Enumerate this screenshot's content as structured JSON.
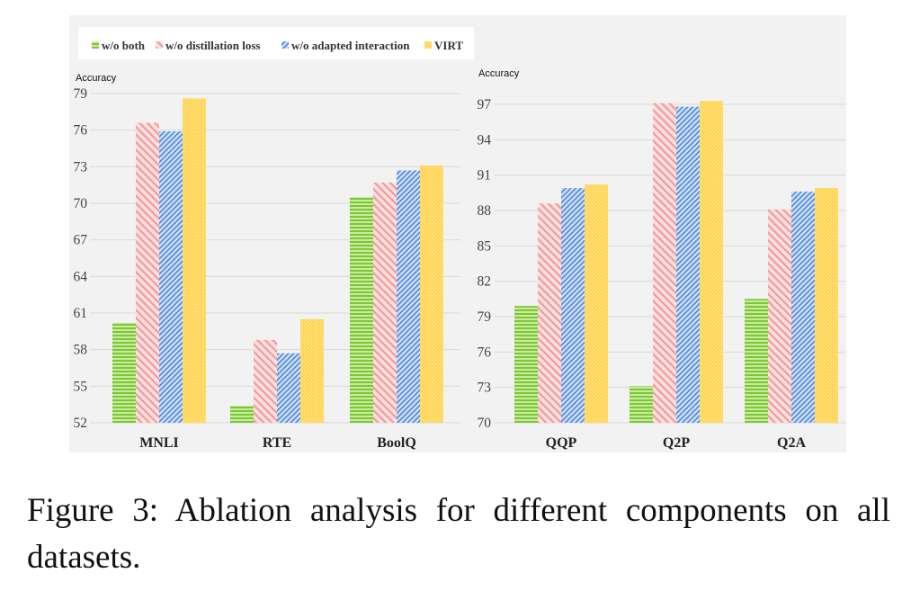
{
  "legend": [
    {
      "name": "w/o both",
      "color": "#8fd14f"
    },
    {
      "name": "w/o distillation loss",
      "color": "#f4a6a6"
    },
    {
      "name": "w/o adapted interaction",
      "color": "#6f9fe0"
    },
    {
      "name": "VIRT",
      "color": "#ffd659"
    }
  ],
  "caption": "Figure 3: Ablation analysis for different components on all datasets.",
  "chart_data": [
    {
      "type": "bar",
      "ylabel": "Accuracy",
      "xlabel": "",
      "ylim": [
        52,
        79
      ],
      "yticks": [
        52,
        55,
        58,
        61,
        64,
        67,
        70,
        73,
        76,
        79
      ],
      "grid": true,
      "categories": [
        "MNLI",
        "RTE",
        "BoolQ"
      ],
      "series": [
        {
          "name": "w/o both",
          "values": [
            60.2,
            53.4,
            70.5
          ]
        },
        {
          "name": "w/o distillation loss",
          "values": [
            76.6,
            58.8,
            71.7
          ]
        },
        {
          "name": "w/o adapted interaction",
          "values": [
            75.9,
            57.7,
            72.7
          ]
        },
        {
          "name": "VIRT",
          "values": [
            78.6,
            60.5,
            73.1
          ]
        }
      ]
    },
    {
      "type": "bar",
      "ylabel": "Accuracy",
      "xlabel": "",
      "ylim": [
        70,
        97
      ],
      "yticks": [
        70,
        73,
        76,
        79,
        82,
        85,
        88,
        91,
        94,
        97
      ],
      "grid": true,
      "categories": [
        "QQP",
        "Q2P",
        "Q2A"
      ],
      "series": [
        {
          "name": "w/o both",
          "values": [
            79.9,
            73.1,
            80.5
          ]
        },
        {
          "name": "w/o distillation loss",
          "values": [
            88.6,
            97.1,
            88.1
          ]
        },
        {
          "name": "w/o adapted interaction",
          "values": [
            89.9,
            96.8,
            89.6
          ]
        },
        {
          "name": "VIRT",
          "values": [
            90.2,
            97.3,
            89.9
          ]
        }
      ]
    }
  ]
}
